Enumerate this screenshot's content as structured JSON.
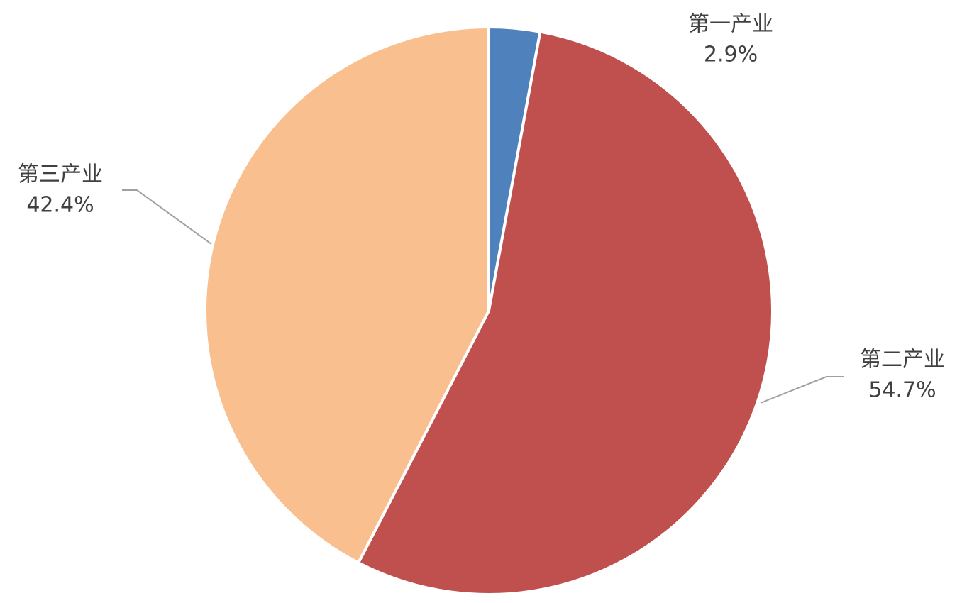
{
  "chart_data": {
    "type": "pie",
    "categories": [
      "第一产业",
      "第二产业",
      "第三产业"
    ],
    "values": [
      2.9,
      54.7,
      42.4
    ],
    "value_labels": [
      "2.9%",
      "54.7%",
      "42.4%"
    ],
    "colors": [
      "#4f81bd",
      "#c0504d",
      "#f9bf8f"
    ]
  }
}
